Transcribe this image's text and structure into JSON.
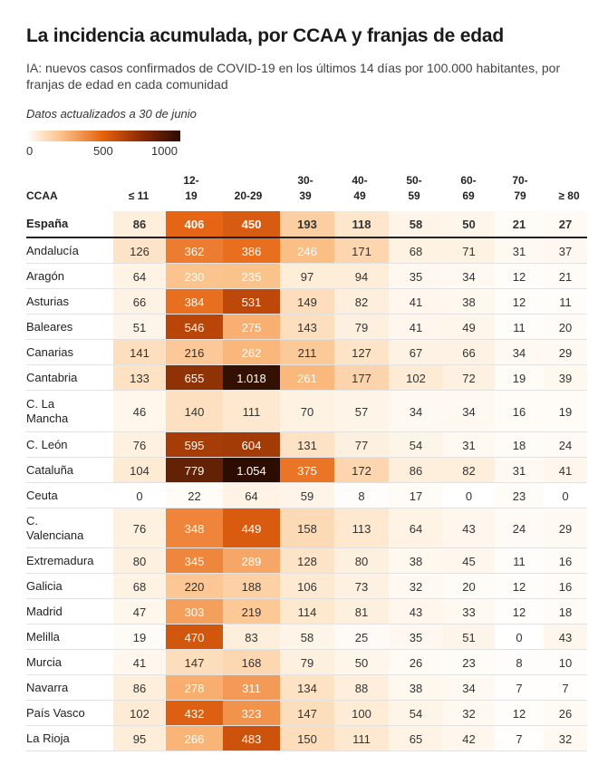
{
  "title": "La incidencia acumulada, por CCAA y franjas de edad",
  "subtitle": "IA: nuevos casos confirmados de COVID-19 en los últimos 14 días por 100.000 habitantes, por franjas de edad en cada comunidad",
  "updated": "Datos actualizados a 30 de junio",
  "legend": {
    "ticks": [
      "0",
      "500",
      "1000"
    ],
    "min": 0,
    "max": 1000
  },
  "chart_data": {
    "type": "heatmap",
    "row_header": "CCAA",
    "columns": [
      "≤ 11",
      "12-\n19",
      "20-29",
      "30-\n39",
      "40-\n49",
      "50-\n59",
      "60-\n69",
      "70-\n79",
      "≥ 80"
    ],
    "rows": [
      {
        "name": "España",
        "values": [
          86,
          406,
          450,
          193,
          118,
          58,
          50,
          21,
          27
        ]
      },
      {
        "name": "Andalucía",
        "values": [
          126,
          362,
          386,
          246,
          171,
          68,
          71,
          31,
          37
        ]
      },
      {
        "name": "Aragón",
        "values": [
          64,
          230,
          235,
          97,
          94,
          35,
          34,
          12,
          21
        ]
      },
      {
        "name": "Asturias",
        "values": [
          66,
          384,
          531,
          149,
          82,
          41,
          38,
          12,
          11
        ]
      },
      {
        "name": "Baleares",
        "values": [
          51,
          546,
          275,
          143,
          79,
          41,
          49,
          11,
          20
        ]
      },
      {
        "name": "Canarias",
        "values": [
          141,
          216,
          262,
          211,
          127,
          67,
          66,
          34,
          29
        ]
      },
      {
        "name": "Cantabria",
        "values": [
          133,
          655,
          1018,
          261,
          177,
          102,
          72,
          19,
          39
        ]
      },
      {
        "name": "C. La\nMancha",
        "values": [
          46,
          140,
          111,
          70,
          57,
          34,
          34,
          16,
          19
        ]
      },
      {
        "name": "C. León",
        "values": [
          76,
          595,
          604,
          131,
          77,
          54,
          31,
          18,
          24
        ]
      },
      {
        "name": "Cataluña",
        "values": [
          104,
          779,
          1054,
          375,
          172,
          86,
          82,
          31,
          41
        ]
      },
      {
        "name": "Ceuta",
        "values": [
          0,
          22,
          64,
          59,
          8,
          17,
          0,
          23,
          0
        ]
      },
      {
        "name": "C.\nValenciana",
        "values": [
          76,
          348,
          449,
          158,
          113,
          64,
          43,
          24,
          29
        ]
      },
      {
        "name": "Extremadura",
        "values": [
          80,
          345,
          289,
          128,
          80,
          38,
          45,
          11,
          16
        ]
      },
      {
        "name": "Galicia",
        "values": [
          68,
          220,
          188,
          106,
          73,
          32,
          20,
          12,
          16
        ]
      },
      {
        "name": "Madrid",
        "values": [
          47,
          303,
          219,
          114,
          81,
          43,
          33,
          12,
          18
        ]
      },
      {
        "name": "Melilla",
        "values": [
          19,
          470,
          83,
          58,
          25,
          35,
          51,
          0,
          43
        ]
      },
      {
        "name": "Murcia",
        "values": [
          41,
          147,
          168,
          79,
          50,
          26,
          23,
          8,
          10
        ]
      },
      {
        "name": "Navarra",
        "values": [
          86,
          278,
          311,
          134,
          88,
          38,
          34,
          7,
          7
        ]
      },
      {
        "name": "País Vasco",
        "values": [
          102,
          432,
          323,
          147,
          100,
          54,
          32,
          12,
          26
        ]
      },
      {
        "name": "La Rioja",
        "values": [
          95,
          266,
          483,
          150,
          111,
          65,
          42,
          7,
          32
        ]
      }
    ],
    "colors": {
      "low": "#ffffff",
      "mid_low": "#fcc48b",
      "mid": "#e5620d",
      "mid_high": "#8a2a06",
      "high": "#2a0b00"
    }
  }
}
